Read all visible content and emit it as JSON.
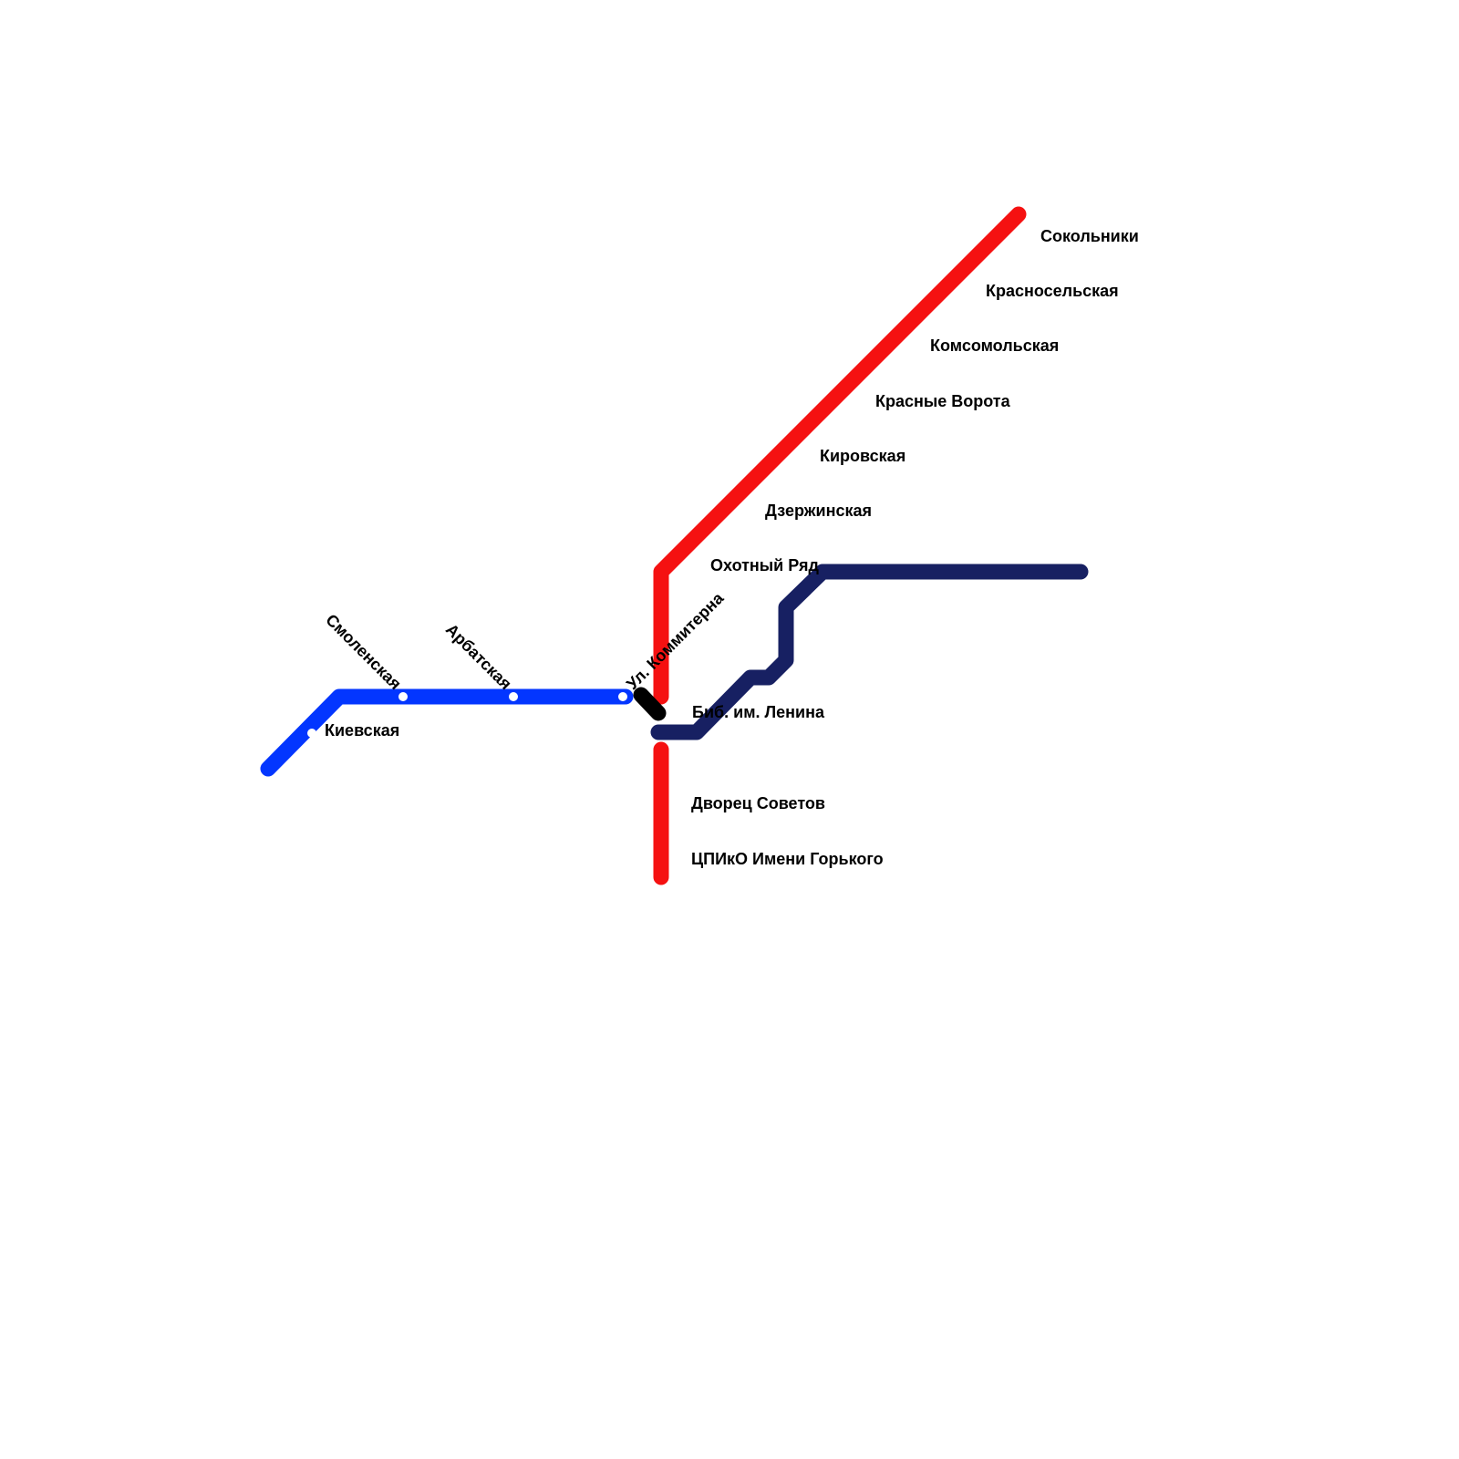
{
  "lines": [
    {
      "stations": [
        "Сокольники",
        "Красносельская",
        "Комсомольская",
        "Красные Ворота",
        "Кировская",
        "Дзержинская",
        "Охотный Ряд",
        "Биб. им. Ленина",
        "Дворец Советов",
        "ЦПИкО Имени Горького"
      ]
    },
    {
      "stations": [
        "Киевская",
        "Смоленская",
        "Арбатская",
        "Ул. Коммитерна"
      ]
    }
  ]
}
